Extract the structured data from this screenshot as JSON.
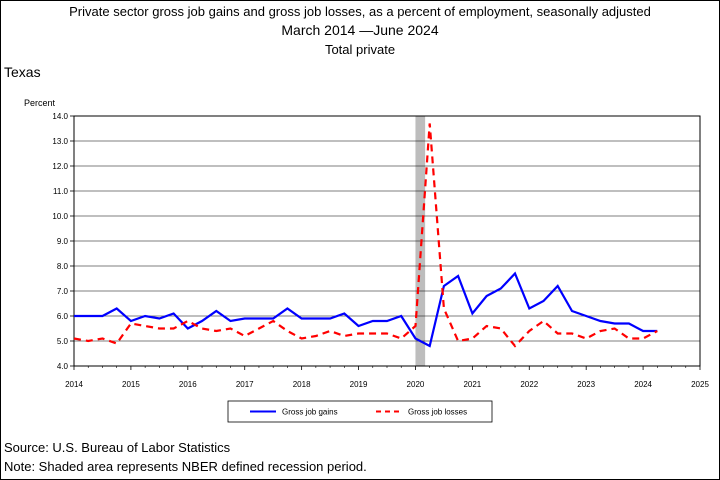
{
  "header": {
    "title_line1": "Private sector gross job gains and gross job losses, as a percent of employment, seasonally adjusted",
    "title_line2": "March 2014 —June 2024",
    "title_line3": "Total private"
  },
  "region": "Texas",
  "footer": {
    "source": "Source: U.S. Bureau of Labor Statistics",
    "note": "Note: Shaded area represents NBER defined recession period."
  },
  "chart_data": {
    "type": "line",
    "ylabel": "Percent",
    "ylim": [
      4.0,
      14.0
    ],
    "yticks": [
      "4.0",
      "5.0",
      "6.0",
      "7.0",
      "8.0",
      "9.0",
      "10.0",
      "11.0",
      "12.0",
      "13.0",
      "14.0"
    ],
    "xlim": [
      2014,
      2025
    ],
    "xticks": [
      "2014",
      "2015",
      "2016",
      "2017",
      "2018",
      "2019",
      "2020",
      "2021",
      "2022",
      "2023",
      "2024",
      "2025"
    ],
    "grid": true,
    "legend_position": "bottom-center",
    "recession": {
      "start": 2020.0,
      "end": 2020.17
    },
    "x": [
      2014.0,
      2014.25,
      2014.5,
      2014.75,
      2015.0,
      2015.25,
      2015.5,
      2015.75,
      2016.0,
      2016.25,
      2016.5,
      2016.75,
      2017.0,
      2017.25,
      2017.5,
      2017.75,
      2018.0,
      2018.25,
      2018.5,
      2018.75,
      2019.0,
      2019.25,
      2019.5,
      2019.75,
      2020.0,
      2020.25,
      2020.5,
      2020.75,
      2021.0,
      2021.25,
      2021.5,
      2021.75,
      2022.0,
      2022.25,
      2022.5,
      2022.75,
      2023.0,
      2023.25,
      2023.5,
      2023.75,
      2024.0,
      2024.25
    ],
    "series": [
      {
        "name": "Gross job gains",
        "color": "#0000ff",
        "dash": "solid",
        "values": [
          6.0,
          6.0,
          6.0,
          6.3,
          5.8,
          6.0,
          5.9,
          6.1,
          5.5,
          5.8,
          6.2,
          5.8,
          5.9,
          5.9,
          5.9,
          6.3,
          5.9,
          5.9,
          5.9,
          6.1,
          5.6,
          5.8,
          5.8,
          6.0,
          5.1,
          4.8,
          7.2,
          7.6,
          6.1,
          6.8,
          7.1,
          7.7,
          6.3,
          6.6,
          7.2,
          6.2,
          6.0,
          5.8,
          5.7,
          5.7,
          5.4,
          5.4
        ]
      },
      {
        "name": "Gross job losses",
        "color": "#ff0000",
        "dash": "dashed",
        "values": [
          5.1,
          5.0,
          5.1,
          4.9,
          5.7,
          5.6,
          5.5,
          5.5,
          5.8,
          5.5,
          5.4,
          5.5,
          5.2,
          5.5,
          5.8,
          5.4,
          5.1,
          5.2,
          5.4,
          5.2,
          5.3,
          5.3,
          5.3,
          5.1,
          5.6,
          13.7,
          6.3,
          5.0,
          5.1,
          5.6,
          5.5,
          4.8,
          5.4,
          5.8,
          5.3,
          5.3,
          5.1,
          5.4,
          5.5,
          5.1,
          5.1,
          5.4
        ]
      }
    ]
  }
}
